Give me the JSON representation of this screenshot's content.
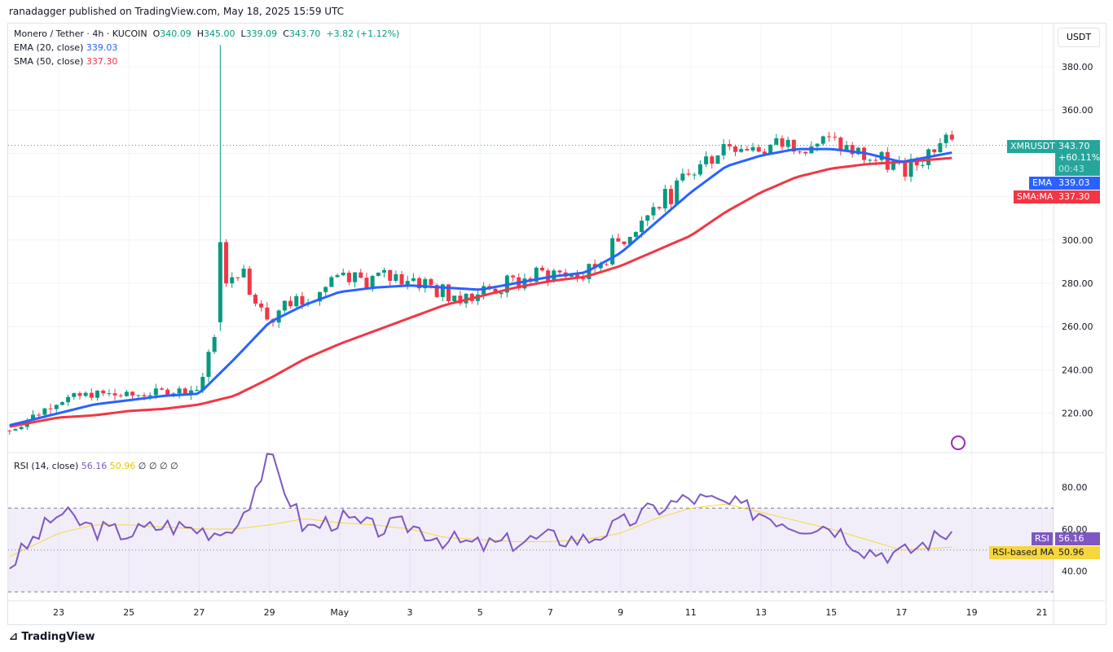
{
  "header": {
    "published": "ranadagger published on TradingView.com, May 18, 2025 15:59 UTC"
  },
  "legend": {
    "symbol": "Monero / Tether · 4h · KUCOIN",
    "o_label": "O",
    "o": "340.09",
    "h_label": "H",
    "h": "345.00",
    "l_label": "L",
    "l": "339.09",
    "c_label": "C",
    "c": "343.70",
    "change": "+3.82 (+1.12%)",
    "ema_label": "EMA (20, close)",
    "ema": "339.03",
    "sma_label": "SMA (50, close)",
    "sma": "337.30",
    "rsi_label": "RSI (14, close)",
    "rsi": "56.16",
    "rsi_ma": "50.96",
    "rsi_extra": "∅ ∅ ∅ ∅"
  },
  "price_tags": {
    "symbol": "XMRUSDT",
    "price": "343.70",
    "pct": "+60.11%",
    "countdown": "00:43",
    "ema_label": "EMA",
    "ema": "339.03",
    "sma_label": "SMA:MA",
    "sma": "337.30",
    "rsi_label": "RSI",
    "rsi": "56.16",
    "rsi_ma_label": "RSI-based MA",
    "rsi_ma": "50.96"
  },
  "currency": "USDT",
  "brand": "TradingView",
  "colors": {
    "up": "#089981",
    "down": "#f23645",
    "ema": "#2962ff",
    "sma": "#f23645",
    "rsi": "#7e57c2",
    "rsi_ma": "#f5d63d"
  },
  "chart_data": {
    "type": "candlestick",
    "title": "Monero / Tether · 4h · KUCOIN",
    "ylim": [
      205,
      395
    ],
    "yticks": [
      220,
      240,
      260,
      280,
      300,
      360,
      380
    ],
    "xticks": [
      "23",
      "25",
      "27",
      "29",
      "May",
      "3",
      "5",
      "7",
      "9",
      "11",
      "13",
      "15",
      "17",
      "19",
      "21"
    ],
    "days": [
      "Apr 22",
      "Apr 23",
      "Apr 24",
      "Apr 25",
      "Apr 26",
      "Apr 27",
      "Apr 28",
      "Apr 29",
      "Apr 30",
      "May 1",
      "May 2",
      "May 3",
      "May 4",
      "May 5",
      "May 6",
      "May 7",
      "May 8",
      "May 9",
      "May 10",
      "May 11",
      "May 12",
      "May 13",
      "May 14",
      "May 15",
      "May 16",
      "May 17",
      "May 18"
    ],
    "daily_close": [
      216,
      226,
      229,
      228,
      230,
      231,
      290,
      265,
      275,
      280,
      282,
      283,
      275,
      276,
      280,
      285,
      283,
      300,
      315,
      330,
      345,
      342,
      345,
      345,
      338,
      333,
      343.7
    ],
    "ema20": [
      216,
      220,
      224,
      226,
      228,
      229,
      245,
      262,
      270,
      276,
      278,
      279,
      278,
      277,
      280,
      283,
      285,
      294,
      308,
      322,
      334,
      339,
      342,
      342,
      340,
      336,
      339.03
    ],
    "sma50": [
      215,
      218,
      219,
      221,
      222,
      224,
      228,
      236,
      245,
      252,
      258,
      264,
      270,
      274,
      278,
      281,
      283,
      288,
      295,
      302,
      313,
      322,
      329,
      333,
      335,
      336,
      337.3
    ],
    "spike": {
      "day": "Apr 28",
      "open": 262,
      "high": 390,
      "close": 299,
      "low": 258
    },
    "rsi": {
      "ylim": [
        30,
        100
      ],
      "yticks": [
        40,
        60,
        80
      ],
      "bands": [
        30,
        70
      ],
      "values": [
        50,
        68,
        60,
        58,
        62,
        60,
        58,
        95,
        60,
        65,
        60,
        62,
        55,
        52,
        54,
        56,
        55,
        62,
        70,
        75,
        72,
        68,
        62,
        62,
        50,
        48,
        56.16
      ],
      "ma": [
        50,
        58,
        62,
        62,
        61,
        60,
        60,
        62,
        65,
        63,
        62,
        60,
        56,
        55,
        54,
        54,
        55,
        58,
        65,
        70,
        72,
        68,
        64,
        60,
        55,
        50,
        50.96
      ]
    }
  }
}
